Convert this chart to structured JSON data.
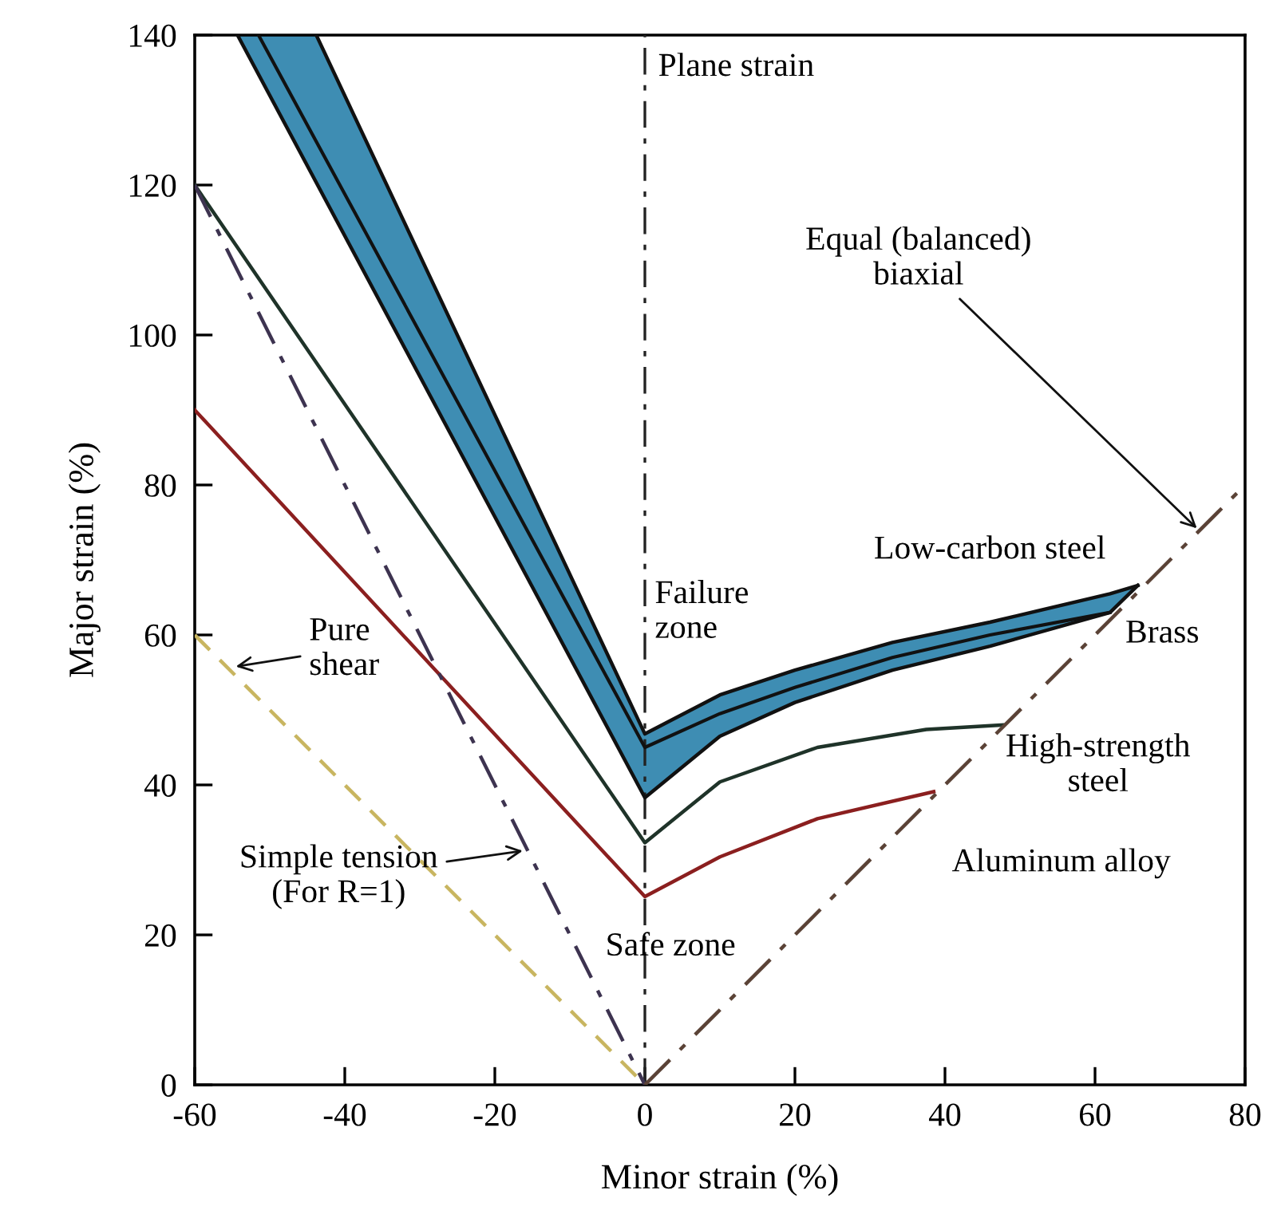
{
  "chart_data": {
    "type": "line",
    "xlabel": "Minor strain (%)",
    "ylabel": "Major strain (%)",
    "xlim": [
      -60,
      80
    ],
    "ylim": [
      0,
      140
    ],
    "xticks": [
      -60,
      -40,
      -20,
      0,
      20,
      40,
      60,
      80
    ],
    "yticks": [
      0,
      20,
      40,
      60,
      80,
      100,
      120,
      140
    ],
    "grid": false,
    "series": [
      {
        "color": "#111111",
        "x": [
          -54.3,
          -51.5,
          -43.8,
          0,
          10,
          20,
          33,
          46,
          62,
          65.7
        ],
        "values": [
          null,
          140,
          125.8,
          45,
          49.5,
          53,
          57,
          60,
          63,
          null
        ],
        "lower": [
          140,
          134.9,
          120.4,
          38.3,
          46.5,
          51,
          55.3,
          58.5,
          63,
          66.6
        ],
        "upper": [
          140,
          140,
          140,
          46.8,
          52,
          55.3,
          59,
          61.7,
          65.5,
          66.6
        ]
      },
      {
        "color": "#111111",
        "x": [
          -43.8,
          0,
          10,
          20,
          33,
          46,
          62,
          65.7
        ],
        "values": [
          140,
          46.8,
          52,
          55.3,
          59,
          61.7,
          65.5,
          66.6
        ]
      },
      {
        "color": "#111111",
        "x": [
          -54.3,
          0,
          10,
          20,
          33,
          46,
          62,
          65.7
        ],
        "values": [
          140,
          38.3,
          46.5,
          51,
          55.3,
          58.5,
          63,
          66.6
        ]
      },
      {
        "color": "#1f3329",
        "x": [
          -60,
          0,
          10,
          23,
          37.5,
          47.7
        ],
        "values": [
          120,
          32.3,
          40.4,
          45,
          47.4,
          48
        ]
      },
      {
        "color": "#8b1f1f",
        "x": [
          -60,
          0,
          10,
          23,
          38.5
        ],
        "values": [
          90,
          25.1,
          30.4,
          35.5,
          39.1
        ]
      },
      {
        "color": "#c8b560",
        "x": [
          -60,
          0
        ],
        "values": [
          60,
          0
        ],
        "line_style": "dashed"
      },
      {
        "color": "#3d3350",
        "x": [
          -60,
          0
        ],
        "values": [
          120,
          0
        ],
        "line_style": "dashdot"
      },
      {
        "color": "#5a4236",
        "x": [
          0,
          80
        ],
        "values": [
          0,
          80
        ],
        "line_style": "dashdot"
      }
    ],
    "ref_lines": [
      {
        "axis": "x",
        "value": 0,
        "label": "Plane strain",
        "color": "#222222",
        "line_style": "dashdot"
      }
    ],
    "annotations": [
      {
        "text": "Equal (balanced)\nbiaxial",
        "x": 74,
        "y": 73.8
      },
      "Failure\nzone",
      "Low-carbon steel",
      "Brass",
      "High-strength\nsteel",
      "Aluminum alloy",
      "Safe zone",
      {
        "text": "Simple tension\n(For R=1)",
        "x": -15.7,
        "y": 31.3
      },
      {
        "text": "Pure\nshear",
        "x": -55.1,
        "y": 55.7
      }
    ]
  }
}
